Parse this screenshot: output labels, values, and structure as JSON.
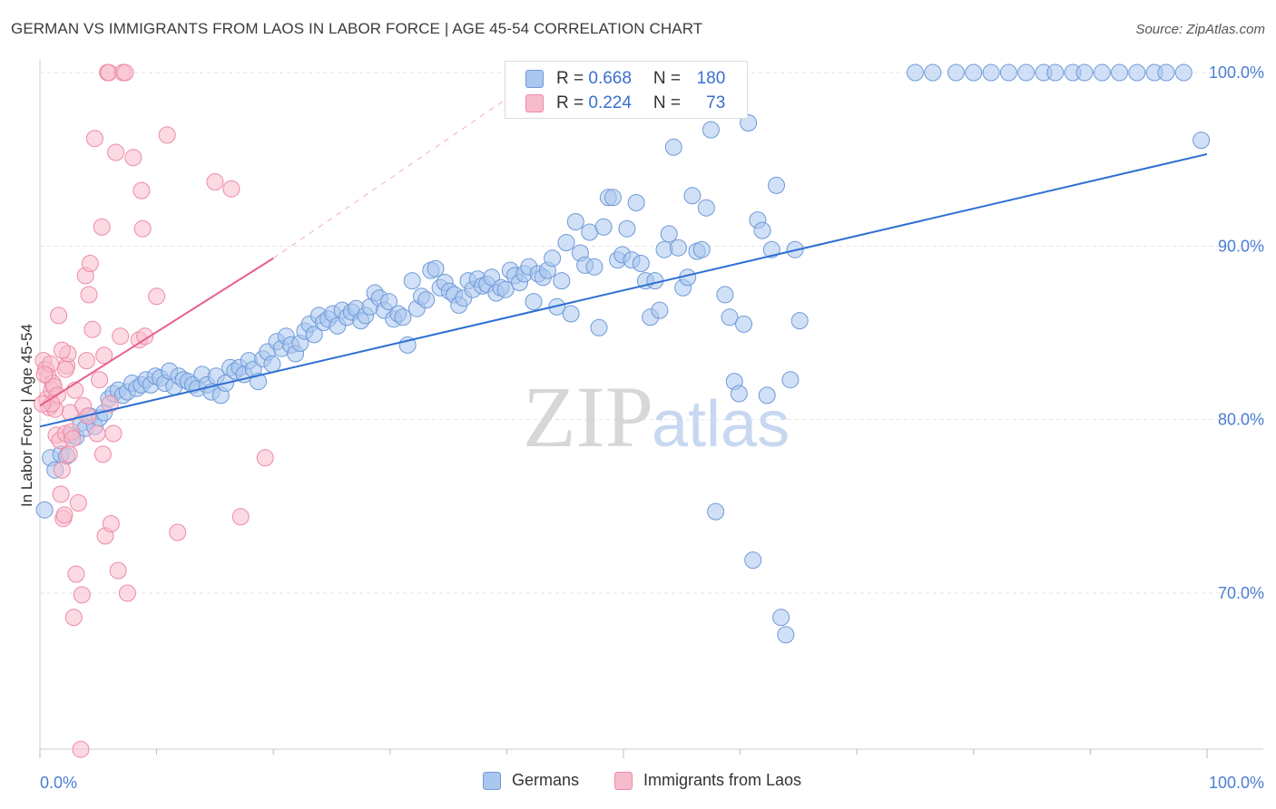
{
  "title": "GERMAN VS IMMIGRANTS FROM LAOS IN LABOR FORCE | AGE 45-54 CORRELATION CHART",
  "source": "Source: ZipAtlas.com",
  "watermark": {
    "zip": "ZIP",
    "atlas": "atlas"
  },
  "legend": {
    "row1": {
      "r_label": "R = ",
      "r_value": "0.668",
      "n_label": "N = ",
      "n_value": "180"
    },
    "row2": {
      "r_label": "R = ",
      "r_value": "0.224",
      "n_label": "N = ",
      "n_value": "73"
    }
  },
  "bottom_legend": {
    "germans": "Germans",
    "laos": "Immigrants from Laos"
  },
  "colors": {
    "blue_fill": "#a9c6ee",
    "blue_stroke": "#6f9ad8",
    "blue_line": "#2d6fd2",
    "pink_fill": "#f7bccc",
    "pink_stroke": "#ee8aa6",
    "pink_line": "#e8608a",
    "grid": "#e2e2e2",
    "tick_text": "#4a7ed4"
  },
  "chart_data": {
    "type": "scatter",
    "ylabel": "In Labor Force | Age 45-54",
    "xlabel": "",
    "x_tick_labels": [
      "0.0%",
      "100.0%"
    ],
    "y_ticks": [
      70,
      80,
      90,
      100
    ],
    "y_tick_labels": [
      "70.0%",
      "80.0%",
      "90.0%",
      "100.0%"
    ],
    "xlim": [
      0,
      100
    ],
    "ylim": [
      60.5,
      101.5
    ],
    "grid": true,
    "series": [
      {
        "name": "Germans",
        "color": "#a9c6ee",
        "trend": {
          "x": [
            0,
            100
          ],
          "y": [
            79.6,
            95.3
          ]
        },
        "points": [
          [
            0.4,
            74.8
          ],
          [
            0.9,
            77.8
          ],
          [
            1.3,
            77.1
          ],
          [
            1.8,
            78.0
          ],
          [
            2.3,
            77.9
          ],
          [
            2.7,
            79.1
          ],
          [
            3.1,
            79.0
          ],
          [
            3.5,
            79.8
          ],
          [
            3.9,
            79.5
          ],
          [
            4.3,
            80.2
          ],
          [
            4.7,
            79.6
          ],
          [
            5.1,
            80.1
          ],
          [
            5.5,
            80.4
          ],
          [
            5.9,
            81.2
          ],
          [
            6.3,
            81.5
          ],
          [
            6.7,
            81.7
          ],
          [
            7.1,
            81.4
          ],
          [
            7.5,
            81.6
          ],
          [
            7.9,
            82.1
          ],
          [
            8.3,
            81.8
          ],
          [
            8.7,
            82.0
          ],
          [
            9.1,
            82.3
          ],
          [
            9.5,
            82.0
          ],
          [
            9.9,
            82.5
          ],
          [
            10.3,
            82.4
          ],
          [
            10.7,
            82.1
          ],
          [
            11.1,
            82.8
          ],
          [
            11.5,
            81.9
          ],
          [
            11.9,
            82.5
          ],
          [
            12.3,
            82.3
          ],
          [
            12.7,
            82.2
          ],
          [
            13.1,
            82.0
          ],
          [
            13.5,
            81.8
          ],
          [
            13.9,
            82.6
          ],
          [
            14.3,
            82.0
          ],
          [
            14.7,
            81.6
          ],
          [
            15.1,
            82.5
          ],
          [
            15.5,
            81.4
          ],
          [
            15.9,
            82.1
          ],
          [
            16.3,
            83.0
          ],
          [
            16.7,
            82.8
          ],
          [
            17.1,
            83.0
          ],
          [
            17.5,
            82.6
          ],
          [
            17.9,
            83.4
          ],
          [
            18.3,
            82.9
          ],
          [
            18.7,
            82.2
          ],
          [
            19.1,
            83.5
          ],
          [
            19.5,
            83.9
          ],
          [
            19.9,
            83.2
          ],
          [
            20.3,
            84.5
          ],
          [
            20.7,
            84.1
          ],
          [
            21.1,
            84.8
          ],
          [
            21.5,
            84.3
          ],
          [
            21.9,
            83.8
          ],
          [
            22.3,
            84.4
          ],
          [
            22.7,
            85.1
          ],
          [
            23.1,
            85.5
          ],
          [
            23.5,
            84.9
          ],
          [
            23.9,
            86.0
          ],
          [
            24.3,
            85.6
          ],
          [
            24.7,
            85.8
          ],
          [
            25.1,
            86.1
          ],
          [
            25.5,
            85.4
          ],
          [
            25.9,
            86.3
          ],
          [
            26.3,
            85.9
          ],
          [
            26.7,
            86.2
          ],
          [
            27.1,
            86.4
          ],
          [
            27.5,
            85.7
          ],
          [
            27.9,
            86.0
          ],
          [
            28.3,
            86.5
          ],
          [
            28.7,
            87.3
          ],
          [
            29.1,
            87.0
          ],
          [
            29.5,
            86.3
          ],
          [
            29.9,
            86.8
          ],
          [
            30.3,
            85.8
          ],
          [
            30.7,
            86.1
          ],
          [
            31.1,
            85.9
          ],
          [
            31.5,
            84.3
          ],
          [
            31.9,
            88.0
          ],
          [
            32.3,
            86.4
          ],
          [
            32.7,
            87.1
          ],
          [
            33.1,
            86.9
          ],
          [
            33.5,
            88.6
          ],
          [
            33.9,
            88.7
          ],
          [
            34.3,
            87.6
          ],
          [
            34.7,
            87.9
          ],
          [
            35.1,
            87.4
          ],
          [
            35.5,
            87.2
          ],
          [
            35.9,
            86.6
          ],
          [
            36.3,
            87.0
          ],
          [
            36.7,
            88.0
          ],
          [
            37.1,
            87.5
          ],
          [
            37.5,
            88.1
          ],
          [
            37.9,
            87.7
          ],
          [
            38.3,
            87.8
          ],
          [
            38.7,
            88.2
          ],
          [
            39.1,
            87.3
          ],
          [
            39.5,
            87.6
          ],
          [
            39.9,
            87.5
          ],
          [
            40.3,
            88.6
          ],
          [
            40.7,
            88.3
          ],
          [
            41.1,
            87.9
          ],
          [
            41.5,
            88.4
          ],
          [
            41.9,
            88.8
          ],
          [
            42.3,
            86.8
          ],
          [
            42.7,
            88.4
          ],
          [
            43.1,
            88.2
          ],
          [
            43.5,
            88.6
          ],
          [
            43.9,
            89.3
          ],
          [
            44.3,
            86.5
          ],
          [
            44.7,
            88.0
          ],
          [
            45.1,
            90.2
          ],
          [
            45.5,
            86.1
          ],
          [
            45.9,
            91.4
          ],
          [
            46.3,
            89.6
          ],
          [
            46.7,
            88.9
          ],
          [
            47.1,
            90.8
          ],
          [
            47.5,
            88.8
          ],
          [
            47.9,
            85.3
          ],
          [
            48.3,
            91.1
          ],
          [
            48.7,
            92.8
          ],
          [
            49.1,
            92.8
          ],
          [
            49.5,
            89.2
          ],
          [
            49.9,
            89.5
          ],
          [
            50.3,
            91.0
          ],
          [
            50.7,
            89.2
          ],
          [
            51.1,
            92.5
          ],
          [
            51.5,
            89.0
          ],
          [
            51.9,
            88.0
          ],
          [
            52.3,
            85.9
          ],
          [
            52.7,
            88.0
          ],
          [
            53.1,
            86.3
          ],
          [
            53.5,
            89.8
          ],
          [
            53.9,
            90.7
          ],
          [
            54.3,
            95.7
          ],
          [
            54.7,
            89.9
          ],
          [
            55.1,
            87.6
          ],
          [
            55.5,
            88.2
          ],
          [
            55.9,
            92.9
          ],
          [
            56.3,
            89.7
          ],
          [
            56.7,
            89.8
          ],
          [
            57.1,
            92.2
          ],
          [
            57.5,
            96.7
          ],
          [
            57.9,
            74.7
          ],
          [
            58.3,
            98.6
          ],
          [
            58.7,
            87.2
          ],
          [
            59.1,
            85.9
          ],
          [
            59.5,
            82.2
          ],
          [
            59.9,
            81.5
          ],
          [
            60.3,
            85.5
          ],
          [
            60.7,
            97.1
          ],
          [
            61.1,
            71.9
          ],
          [
            61.5,
            91.5
          ],
          [
            61.9,
            90.9
          ],
          [
            62.3,
            81.4
          ],
          [
            62.7,
            89.8
          ],
          [
            63.1,
            93.5
          ],
          [
            63.5,
            68.6
          ],
          [
            63.9,
            67.6
          ],
          [
            64.3,
            82.3
          ],
          [
            64.7,
            89.8
          ],
          [
            65.1,
            85.7
          ],
          [
            75.0,
            100.0
          ],
          [
            76.5,
            100.0
          ],
          [
            78.5,
            100.0
          ],
          [
            80.0,
            100.0
          ],
          [
            81.5,
            100.0
          ],
          [
            83.0,
            100.0
          ],
          [
            84.5,
            100.0
          ],
          [
            86.0,
            100.0
          ],
          [
            87.0,
            100.0
          ],
          [
            88.5,
            100.0
          ],
          [
            89.5,
            100.0
          ],
          [
            91.0,
            100.0
          ],
          [
            92.5,
            100.0
          ],
          [
            94.0,
            100.0
          ],
          [
            95.5,
            100.0
          ],
          [
            96.5,
            100.0
          ],
          [
            98.0,
            100.0
          ],
          [
            99.5,
            96.1
          ]
        ]
      },
      {
        "name": "Immigrants from Laos",
        "color": "#f7bccc",
        "trend": {
          "x": [
            0,
            20
          ],
          "y": [
            80.8,
            89.3
          ],
          "dashed_to": {
            "x": 40,
            "y": 98.5
          }
        },
        "points": [
          [
            0.3,
            83.4
          ],
          [
            0.5,
            82.9
          ],
          [
            0.6,
            81.2
          ],
          [
            0.7,
            82.5
          ],
          [
            0.8,
            80.7
          ],
          [
            0.9,
            83.2
          ],
          [
            1.0,
            81.7
          ],
          [
            1.1,
            82.1
          ],
          [
            1.2,
            81.9
          ],
          [
            1.3,
            80.6
          ],
          [
            1.4,
            79.1
          ],
          [
            1.5,
            81.4
          ],
          [
            1.6,
            86.0
          ],
          [
            1.7,
            78.8
          ],
          [
            1.8,
            75.7
          ],
          [
            1.9,
            77.1
          ],
          [
            2.0,
            74.3
          ],
          [
            2.1,
            74.5
          ],
          [
            2.2,
            79.2
          ],
          [
            2.3,
            83.1
          ],
          [
            2.4,
            83.8
          ],
          [
            2.5,
            78.0
          ],
          [
            2.6,
            80.4
          ],
          [
            2.7,
            79.3
          ],
          [
            2.9,
            68.6
          ],
          [
            3.1,
            71.1
          ],
          [
            3.3,
            75.2
          ],
          [
            3.5,
            61.0
          ],
          [
            3.6,
            69.9
          ],
          [
            3.7,
            80.8
          ],
          [
            3.9,
            88.3
          ],
          [
            4.0,
            83.4
          ],
          [
            4.2,
            87.2
          ],
          [
            4.3,
            89.0
          ],
          [
            4.5,
            85.2
          ],
          [
            4.7,
            96.2
          ],
          [
            4.9,
            79.2
          ],
          [
            5.1,
            82.3
          ],
          [
            5.3,
            91.1
          ],
          [
            5.4,
            78.0
          ],
          [
            5.5,
            83.7
          ],
          [
            5.6,
            73.3
          ],
          [
            5.8,
            100.0
          ],
          [
            5.9,
            100.0
          ],
          [
            6.1,
            74.0
          ],
          [
            6.3,
            79.2
          ],
          [
            6.5,
            95.4
          ],
          [
            6.7,
            71.3
          ],
          [
            6.9,
            84.8
          ],
          [
            7.1,
            100.0
          ],
          [
            7.3,
            100.0
          ],
          [
            7.5,
            70.0
          ],
          [
            8.0,
            95.1
          ],
          [
            8.5,
            84.6
          ],
          [
            8.7,
            93.2
          ],
          [
            8.8,
            91.0
          ],
          [
            9.0,
            84.8
          ],
          [
            10.0,
            87.1
          ],
          [
            10.9,
            96.4
          ],
          [
            11.8,
            73.5
          ],
          [
            15.0,
            93.7
          ],
          [
            16.4,
            93.3
          ],
          [
            17.2,
            74.4
          ],
          [
            19.3,
            77.8
          ],
          [
            1.0,
            80.9
          ],
          [
            2.8,
            78.9
          ],
          [
            4.1,
            80.2
          ],
          [
            0.4,
            82.6
          ],
          [
            1.9,
            84.0
          ],
          [
            0.2,
            80.9
          ],
          [
            3.0,
            81.7
          ],
          [
            6.0,
            80.9
          ],
          [
            2.2,
            82.9
          ]
        ]
      }
    ]
  }
}
